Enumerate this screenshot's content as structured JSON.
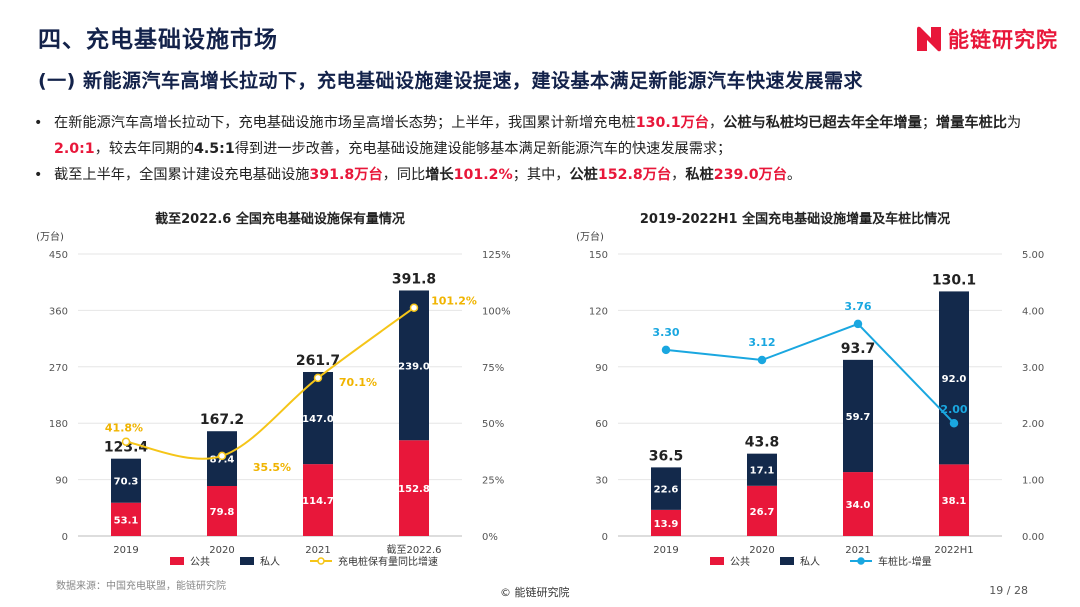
{
  "header": {
    "title": "四、充电基础设施市场",
    "subtitle": "(一) 新能源汽车高增长拉动下，充电基础设施建设提速，建设基本满足新能源汽车快速发展需求",
    "logo_text": "能链研究院"
  },
  "bullets": [
    {
      "parts": [
        {
          "text": "在新能源汽车高增长拉动下，充电基础设施市场呈高增长态势；上半年，我国累计新增充电桩",
          "style": "normal"
        },
        {
          "text": "130.1万台",
          "style": "red"
        },
        {
          "text": "，",
          "style": "normal"
        },
        {
          "text": "公桩与私桩均已超去年全年增量",
          "style": "bold"
        },
        {
          "text": "；",
          "style": "normal"
        },
        {
          "text": "增量车桩比",
          "style": "bold"
        },
        {
          "text": "为",
          "style": "normal"
        },
        {
          "text": "2.0:1",
          "style": "red"
        },
        {
          "text": "，较去年同期的",
          "style": "normal"
        },
        {
          "text": "4.5:1",
          "style": "bold"
        },
        {
          "text": "得到进一步改善，充电基础设施建设能够基本满足新能源汽车的快速发展需求；",
          "style": "normal"
        }
      ]
    },
    {
      "parts": [
        {
          "text": "截至上半年，全国累计建设充电基础设施",
          "style": "normal"
        },
        {
          "text": "391.8万台",
          "style": "red"
        },
        {
          "text": "，同比",
          "style": "normal"
        },
        {
          "text": "增长",
          "style": "bold"
        },
        {
          "text": "101.2%",
          "style": "red"
        },
        {
          "text": "；其中，",
          "style": "normal"
        },
        {
          "text": "公桩",
          "style": "bold"
        },
        {
          "text": "152.8万台",
          "style": "red"
        },
        {
          "text": "，",
          "style": "normal"
        },
        {
          "text": "私桩",
          "style": "bold"
        },
        {
          "text": "239.0万台",
          "style": "red"
        },
        {
          "text": "。",
          "style": "normal"
        }
      ]
    }
  ],
  "colors": {
    "public": "#e8173a",
    "private": "#13294b",
    "line_left": "#f5c518",
    "line_right": "#1aa7e0",
    "brand": "#e8173a"
  },
  "chart_data": [
    {
      "type": "bar",
      "stacked": true,
      "title": "截至2022.6 全国充电基础设施保有量情况",
      "unit_label": "(万台)",
      "categories": [
        "2019",
        "2020",
        "2021",
        "截至2022.6"
      ],
      "series": [
        {
          "name": "公共",
          "values": [
            53.1,
            79.8,
            114.7,
            152.8
          ]
        },
        {
          "name": "私人",
          "values": [
            70.3,
            87.4,
            147.0,
            239.0
          ]
        }
      ],
      "totals": [
        123.4,
        167.2,
        261.7,
        391.8
      ],
      "ylim": [
        0,
        450
      ],
      "yticks": [
        0,
        90,
        180,
        270,
        360,
        450
      ],
      "line": {
        "name": "充电桩保有量同比增速",
        "values": [
          41.8,
          35.5,
          70.1,
          101.2
        ],
        "labels": [
          "41.8%",
          "35.5%",
          "70.1%",
          "101.2%"
        ]
      },
      "y2lim": [
        0,
        125
      ],
      "y2ticks": [
        "0%",
        "25%",
        "50%",
        "75%",
        "100%",
        "125%"
      ],
      "legend": [
        "公共",
        "私人",
        "充电桩保有量同比增速"
      ],
      "legend_position": "bottom"
    },
    {
      "type": "bar",
      "stacked": true,
      "title": "2019-2022H1 全国充电基础设施增量及车桩比情况",
      "unit_label": "(万台)",
      "categories": [
        "2019",
        "2020",
        "2021",
        "2022H1"
      ],
      "series": [
        {
          "name": "公共",
          "values": [
            13.9,
            26.7,
            34.0,
            38.1
          ]
        },
        {
          "name": "私人",
          "values": [
            22.6,
            17.1,
            59.7,
            92.0
          ]
        }
      ],
      "totals": [
        36.5,
        43.8,
        93.7,
        130.1
      ],
      "ylim": [
        0,
        150
      ],
      "yticks": [
        0,
        30,
        60,
        90,
        120,
        150
      ],
      "line": {
        "name": "车桩比-增量",
        "values": [
          3.3,
          3.12,
          3.76,
          2.0
        ],
        "labels": [
          "3.30",
          "3.12",
          "3.76",
          "2.00"
        ]
      },
      "y2lim": [
        0,
        5
      ],
      "y2ticks": [
        "0.00",
        "1.00",
        "2.00",
        "3.00",
        "4.00",
        "5.00"
      ],
      "legend": [
        "公共",
        "私人",
        "车桩比-增量"
      ],
      "legend_position": "bottom"
    }
  ],
  "footer": {
    "source": "数据来源：中国充电联盟，能链研究院",
    "copyright": "© 能链研究院",
    "page": "19 / 28"
  }
}
